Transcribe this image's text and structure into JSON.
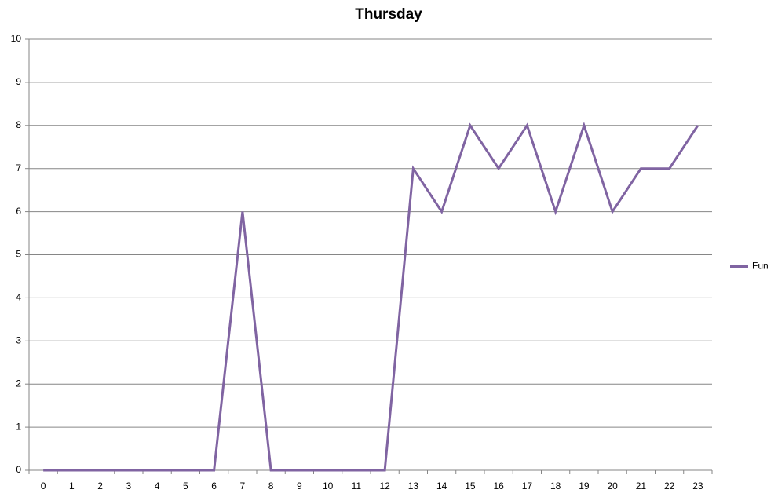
{
  "chart_data": {
    "type": "line",
    "title": "Thursday",
    "categories": [
      "0",
      "1",
      "2",
      "3",
      "4",
      "5",
      "6",
      "7",
      "8",
      "9",
      "10",
      "11",
      "12",
      "13",
      "14",
      "15",
      "16",
      "17",
      "18",
      "19",
      "20",
      "21",
      "22",
      "23"
    ],
    "series": [
      {
        "name": "Fun",
        "color": "#8064a2",
        "values": [
          0,
          0,
          0,
          0,
          0,
          0,
          0,
          6,
          0,
          0,
          0,
          0,
          0,
          7,
          6,
          8,
          7,
          8,
          6,
          8,
          6,
          7,
          7,
          8
        ]
      }
    ],
    "ylim": [
      0,
      10
    ],
    "yticks": [
      0,
      1,
      2,
      3,
      4,
      5,
      6,
      7,
      8,
      9,
      10
    ],
    "grid": true,
    "legend": "right"
  }
}
